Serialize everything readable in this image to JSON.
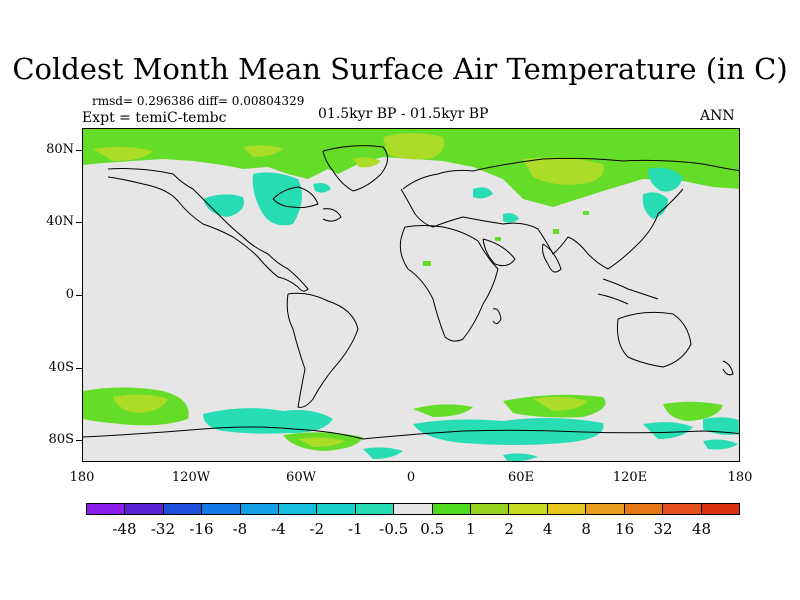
{
  "title": "Coldest Month Mean Surface Air Temperature (in C)",
  "stats": "rmsd= 0.296386 diff= 0.00804329",
  "expt": "Expt = temiC-tembc",
  "period": "01.5kyr BP - 01.5kyr BP",
  "season": "ANN",
  "lat_labels": [
    "80N",
    "40N",
    "0",
    "40S",
    "80S"
  ],
  "lon_labels": [
    "180",
    "120W",
    "60W",
    "0",
    "60E",
    "120E",
    "180"
  ],
  "colorbar": {
    "labels": [
      "-48",
      "-32",
      "-16",
      "-8",
      "-4",
      "-2",
      "-1",
      "-0.5",
      "0.5",
      "1",
      "2",
      "4",
      "8",
      "16",
      "32",
      "48"
    ],
    "colors": [
      "#8c1eeb",
      "#5a23d2",
      "#1e50dc",
      "#1478e6",
      "#14a0e6",
      "#14bedc",
      "#14d2c8",
      "#28dcb4",
      "#e6e6e6",
      "#50dc1e",
      "#96d21e",
      "#c8dc1e",
      "#e6c81e",
      "#e6a01e",
      "#e67814",
      "#e6501e",
      "#dc3214"
    ]
  },
  "colors": {
    "green": "#64dc28",
    "yellowgreen": "#aadc28",
    "cyan": "#28dcb4",
    "land_bg": "#e6e6e6"
  }
}
